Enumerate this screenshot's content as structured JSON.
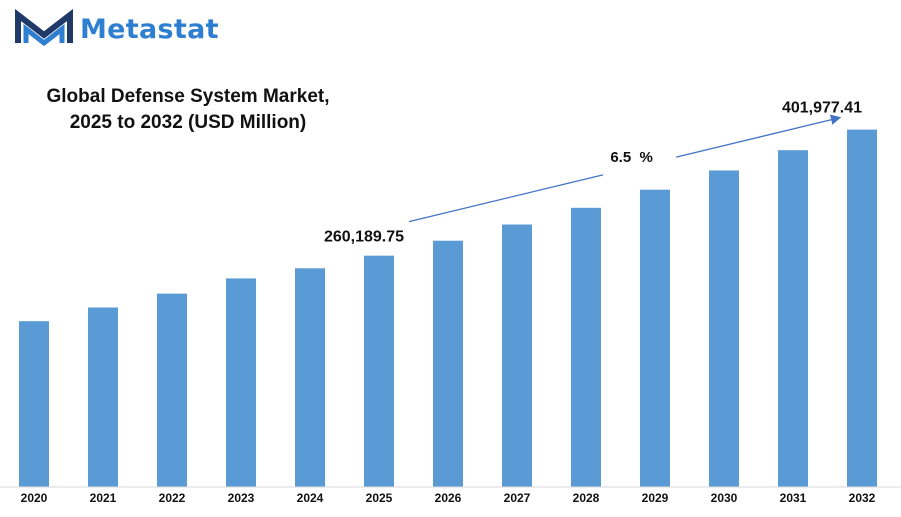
{
  "brand": {
    "name": "Metastat",
    "accent": "#2f7fd1",
    "logo_icon": "m-logo-icon"
  },
  "chart_data": {
    "type": "bar",
    "title_line1": "Global Defense System Market,",
    "title_line2": "2025 to 2032 (USD Million)",
    "categories": [
      "2020",
      "2021",
      "2022",
      "2023",
      "2024",
      "2025",
      "2026",
      "2027",
      "2028",
      "2029",
      "2030",
      "2031",
      "2032"
    ],
    "values": [
      186500,
      201900,
      217500,
      234600,
      246000,
      260189.75,
      277000,
      295200,
      314000,
      334400,
      356000,
      378800,
      401977.41
    ],
    "ylim": [
      0,
      460000
    ],
    "bar_color": "#5b9bd5",
    "grid": false,
    "annotations": {
      "start_label": "260,189.75",
      "end_label": "401,977.41",
      "cagr_label": "6.5  %"
    }
  }
}
